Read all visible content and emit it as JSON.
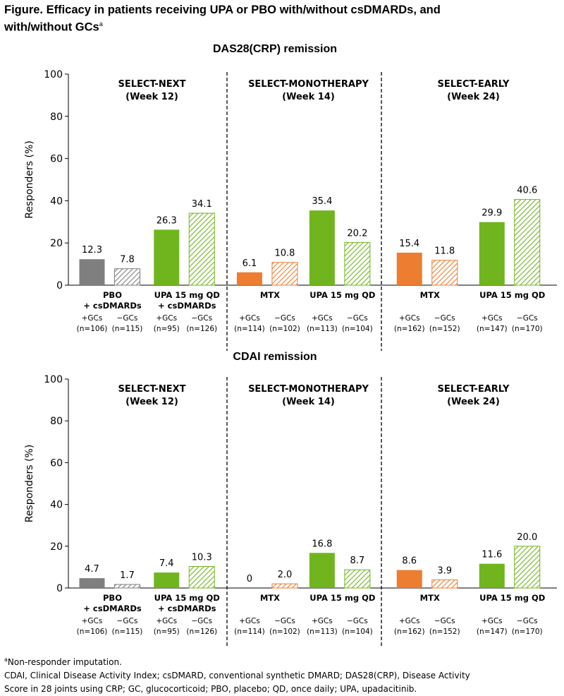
{
  "title": {
    "line1": "Figure. Efficacy in patients receiving UPA or PBO with/without csDMARDs, and",
    "line2": "with/without GCs",
    "sup": "a"
  },
  "colors": {
    "pbo": "#7f7f7f",
    "mtx": "#ed7d31",
    "upa": "#70b51e",
    "gc_neg_hatch": "diagonal-hatch"
  },
  "chart_data": [
    {
      "type": "bar",
      "title": "DAS28(CRP) remission",
      "ylabel": "Responders (%)",
      "ylim": [
        0,
        100
      ],
      "yticks": [
        0,
        20,
        40,
        60,
        80,
        100
      ],
      "grid": false,
      "panels": [
        {
          "name": "SELECT-NEXT",
          "week": "(Week 12)",
          "groups": [
            {
              "label": [
                "PBO",
                "+ csDMARDs"
              ],
              "color": "pbo",
              "bars": [
                {
                  "gc": "+GCs",
                  "n": "(n=106)",
                  "value": 12.3,
                  "label": "12.3",
                  "hatched": false
                },
                {
                  "gc": "−GCs",
                  "n": "(n=115)",
                  "value": 7.8,
                  "label": "7.8",
                  "hatched": true
                }
              ]
            },
            {
              "label": [
                "UPA 15 mg QD",
                "+ csDMARDs"
              ],
              "color": "upa",
              "bars": [
                {
                  "gc": "+GCs",
                  "n": "(n=95)",
                  "value": 26.3,
                  "label": "26.3",
                  "hatched": false
                },
                {
                  "gc": "−GCs",
                  "n": "(n=126)",
                  "value": 34.1,
                  "label": "34.1",
                  "hatched": true
                }
              ]
            }
          ]
        },
        {
          "name": "SELECT-MONOTHERAPY",
          "week": "(Week 14)",
          "groups": [
            {
              "label": [
                "MTX"
              ],
              "color": "mtx",
              "bars": [
                {
                  "gc": "+GCs",
                  "n": "(n=114)",
                  "value": 6.1,
                  "label": "6.1",
                  "hatched": false
                },
                {
                  "gc": "−GCs",
                  "n": "(n=102)",
                  "value": 10.8,
                  "label": "10.8",
                  "hatched": true
                }
              ]
            },
            {
              "label": [
                "UPA 15 mg QD"
              ],
              "color": "upa",
              "bars": [
                {
                  "gc": "+GCs",
                  "n": "(n=113)",
                  "value": 35.4,
                  "label": "35.4",
                  "hatched": false
                },
                {
                  "gc": "−GCs",
                  "n": "(n=104)",
                  "value": 20.2,
                  "label": "20.2",
                  "hatched": true
                }
              ]
            }
          ]
        },
        {
          "name": "SELECT-EARLY",
          "week": "(Week 24)",
          "groups": [
            {
              "label": [
                "MTX"
              ],
              "color": "mtx",
              "bars": [
                {
                  "gc": "+GCs",
                  "n": "(n=162)",
                  "value": 15.4,
                  "label": "15.4",
                  "hatched": false
                },
                {
                  "gc": "−GCs",
                  "n": "(n=152)",
                  "value": 11.8,
                  "label": "11.8",
                  "hatched": true
                }
              ]
            },
            {
              "label": [
                "UPA 15 mg QD"
              ],
              "color": "upa",
              "bars": [
                {
                  "gc": "+GCs",
                  "n": "(n=147)",
                  "value": 29.9,
                  "label": "29.9",
                  "hatched": false
                },
                {
                  "gc": "−GCs",
                  "n": "(n=170)",
                  "value": 40.6,
                  "label": "40.6",
                  "hatched": true
                }
              ]
            }
          ]
        }
      ]
    },
    {
      "type": "bar",
      "title": "CDAI remission",
      "ylabel": "Responders (%)",
      "ylim": [
        0,
        100
      ],
      "yticks": [
        0,
        20,
        40,
        60,
        80,
        100
      ],
      "grid": false,
      "panels": [
        {
          "name": "SELECT-NEXT",
          "week": "(Week 12)",
          "groups": [
            {
              "label": [
                "PBO",
                "+ csDMARDs"
              ],
              "color": "pbo",
              "bars": [
                {
                  "gc": "+GCs",
                  "n": "(n=106)",
                  "value": 4.7,
                  "label": "4.7",
                  "hatched": false
                },
                {
                  "gc": "−GCs",
                  "n": "(n=115)",
                  "value": 1.7,
                  "label": "1.7",
                  "hatched": true
                }
              ]
            },
            {
              "label": [
                "UPA 15 mg QD",
                "+ csDMARDs"
              ],
              "color": "upa",
              "bars": [
                {
                  "gc": "+GCs",
                  "n": "(n=95)",
                  "value": 7.4,
                  "label": "7.4",
                  "hatched": false
                },
                {
                  "gc": "−GCs",
                  "n": "(n=126)",
                  "value": 10.3,
                  "label": "10.3",
                  "hatched": true
                }
              ]
            }
          ]
        },
        {
          "name": "SELECT-MONOTHERAPY",
          "week": "(Week 14)",
          "groups": [
            {
              "label": [
                "MTX"
              ],
              "color": "mtx",
              "bars": [
                {
                  "gc": "+GCs",
                  "n": "(n=114)",
                  "value": 0,
                  "label": "0",
                  "hatched": false
                },
                {
                  "gc": "−GCs",
                  "n": "(n=102)",
                  "value": 2.0,
                  "label": "2.0",
                  "hatched": true
                }
              ]
            },
            {
              "label": [
                "UPA 15 mg QD"
              ],
              "color": "upa",
              "bars": [
                {
                  "gc": "+GCs",
                  "n": "(n=113)",
                  "value": 16.8,
                  "label": "16.8",
                  "hatched": false
                },
                {
                  "gc": "−GCs",
                  "n": "(n=104)",
                  "value": 8.7,
                  "label": "8.7",
                  "hatched": true
                }
              ]
            }
          ]
        },
        {
          "name": "SELECT-EARLY",
          "week": "(Week 24)",
          "groups": [
            {
              "label": [
                "MTX"
              ],
              "color": "mtx",
              "bars": [
                {
                  "gc": "+GCs",
                  "n": "(n=162)",
                  "value": 8.6,
                  "label": "8.6",
                  "hatched": false
                },
                {
                  "gc": "−GCs",
                  "n": "(n=152)",
                  "value": 3.9,
                  "label": "3.9",
                  "hatched": true
                }
              ]
            },
            {
              "label": [
                "UPA 15 mg QD"
              ],
              "color": "upa",
              "bars": [
                {
                  "gc": "+GCs",
                  "n": "(n=147)",
                  "value": 11.6,
                  "label": "11.6",
                  "hatched": false
                },
                {
                  "gc": "−GCs",
                  "n": "(n=170)",
                  "value": 20.0,
                  "label": "20.0",
                  "hatched": true
                }
              ]
            }
          ]
        }
      ]
    }
  ],
  "footnotes": {
    "a_sup": "a",
    "a_text": "Non-responder imputation.",
    "abbrev_line1": "CDAI, Clinical Disease Activity Index; csDMARD, conventional synthetic DMARD; DAS28(CRP), Disease Activity",
    "abbrev_line2": "Score in 28 joints using CRP; GC, glucocorticoid; PBO, placebo; QD, once daily; UPA, upadacitinib."
  }
}
